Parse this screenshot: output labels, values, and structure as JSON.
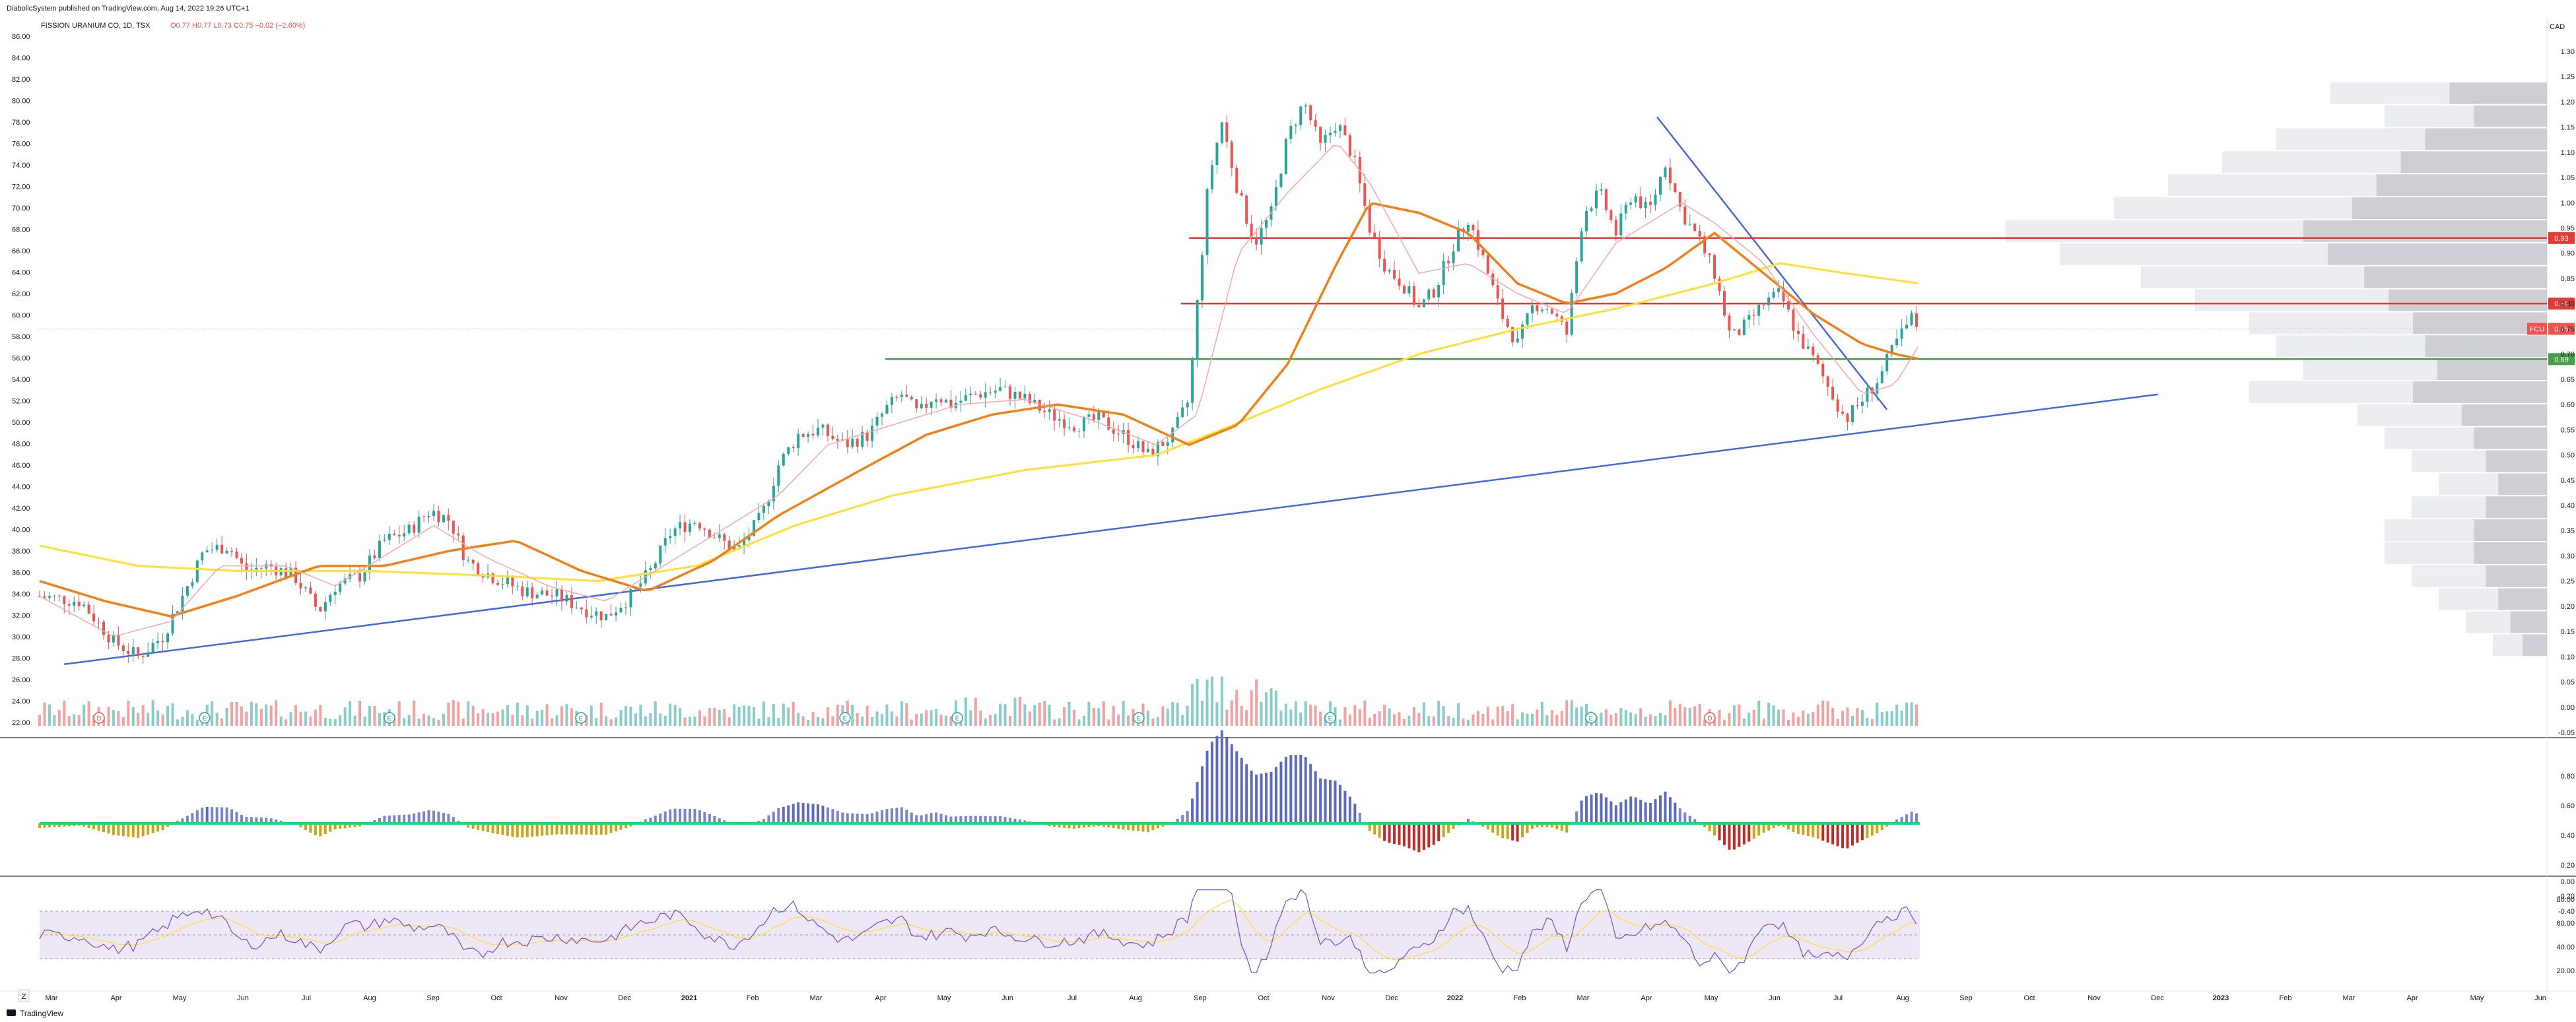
{
  "header": {
    "publisher": "DiabolicSystem published on TradingView.com, Aug 14, 2022 19:26 UTC+1",
    "symbol": "FISSION URANIUM CO, 1D, TSX",
    "ohlc": "O0.77 H0.77 L0.73 C0.75 −0.02 (−2.60%)"
  },
  "currency": "CAD",
  "footer": {
    "brand": "TradingView",
    "z_button": "Z"
  },
  "colors": {
    "up": "#26a69a",
    "down": "#ef5350",
    "ma_short": "#f7a9a8",
    "ma_mid": "#f57f17",
    "ma_long": "#ffe033",
    "trend": "#4169e1",
    "hline_red": "#e53935",
    "hline_green": "#43a047",
    "vp": "#c7c9cf",
    "rsi_band": "#ede7f6",
    "rsi_line": "#7e57c2",
    "rsi_ma": "#ffe033"
  },
  "chart_data": {
    "type": "candlestick",
    "symbol": "FISSION URANIUM CO",
    "interval": "1D",
    "exchange": "TSX",
    "x_ticks": [
      "Mar",
      "Apr",
      "May",
      "Jun",
      "Jul",
      "Aug",
      "Sep",
      "Oct",
      "Nov",
      "Dec",
      "2021",
      "Feb",
      "Mar",
      "Apr",
      "May",
      "Jun",
      "Jul",
      "Aug",
      "Sep",
      "Oct",
      "Nov",
      "Dec",
      "2022",
      "Feb",
      "Mar",
      "Apr",
      "May",
      "Jun",
      "Jul",
      "Aug",
      "Sep",
      "Oct",
      "Nov",
      "Dec",
      "2023",
      "Feb",
      "Mar",
      "Apr",
      "May",
      "Jun"
    ],
    "left_ticks": [
      "86.00",
      "84.00",
      "82.00",
      "80.00",
      "78.00",
      "76.00",
      "74.00",
      "72.00",
      "70.00",
      "68.00",
      "66.00",
      "64.00",
      "62.00",
      "60.00",
      "58.00",
      "56.00",
      "54.00",
      "52.00",
      "50.00",
      "48.00",
      "46.00",
      "44.00",
      "42.00",
      "40.00",
      "38.00",
      "36.00",
      "34.00",
      "32.00",
      "30.00",
      "28.00",
      "26.00",
      "24.00",
      "22.00"
    ],
    "price_ticks": [
      "1.30",
      "1.25",
      "1.20",
      "1.15",
      "1.10",
      "1.05",
      "1.00",
      "0.95",
      "0.90",
      "0.85",
      "0.80",
      "0.75",
      "0.70",
      "0.65",
      "0.60",
      "0.55",
      "0.50",
      "0.45",
      "0.40",
      "0.35",
      "0.30",
      "0.25",
      "0.20",
      "0.15",
      "0.10",
      "0.05",
      "0.00",
      "-0.05"
    ],
    "ylim": [
      -0.05,
      1.33
    ],
    "price_path": [
      [
        0,
        0.22
      ],
      [
        25,
        0.21
      ],
      [
        45,
        0.13
      ],
      [
        60,
        0.1
      ],
      [
        75,
        0.14
      ],
      [
        90,
        0.24
      ],
      [
        100,
        0.31
      ],
      [
        115,
        0.32
      ],
      [
        125,
        0.27
      ],
      [
        140,
        0.28
      ],
      [
        155,
        0.26
      ],
      [
        170,
        0.19
      ],
      [
        180,
        0.24
      ],
      [
        195,
        0.26
      ],
      [
        210,
        0.33
      ],
      [
        225,
        0.35
      ],
      [
        238,
        0.39
      ],
      [
        250,
        0.37
      ],
      [
        260,
        0.29
      ],
      [
        275,
        0.26
      ],
      [
        295,
        0.23
      ],
      [
        315,
        0.22
      ],
      [
        335,
        0.19
      ],
      [
        345,
        0.18
      ],
      [
        360,
        0.22
      ],
      [
        372,
        0.27
      ],
      [
        385,
        0.35
      ],
      [
        400,
        0.37
      ],
      [
        415,
        0.33
      ],
      [
        425,
        0.31
      ],
      [
        440,
        0.38
      ],
      [
        450,
        0.48
      ],
      [
        462,
        0.54
      ],
      [
        475,
        0.55
      ],
      [
        490,
        0.52
      ],
      [
        505,
        0.54
      ],
      [
        515,
        0.59
      ],
      [
        525,
        0.62
      ],
      [
        535,
        0.58
      ],
      [
        545,
        0.62
      ],
      [
        555,
        0.6
      ],
      [
        570,
        0.62
      ],
      [
        585,
        0.63
      ],
      [
        600,
        0.61
      ],
      [
        615,
        0.58
      ],
      [
        630,
        0.56
      ],
      [
        645,
        0.57
      ],
      [
        660,
        0.54
      ],
      [
        675,
        0.5
      ],
      [
        690,
        0.54
      ],
      [
        700,
        0.61
      ],
      [
        705,
        0.8
      ],
      [
        712,
        1.05
      ],
      [
        720,
        1.16
      ],
      [
        730,
        1.02
      ],
      [
        740,
        0.92
      ],
      [
        750,
        0.98
      ],
      [
        760,
        1.13
      ],
      [
        770,
        1.2
      ],
      [
        780,
        1.11
      ],
      [
        790,
        1.16
      ],
      [
        800,
        1.09
      ],
      [
        810,
        0.95
      ],
      [
        820,
        0.87
      ],
      [
        830,
        0.84
      ],
      [
        840,
        0.79
      ],
      [
        850,
        0.83
      ],
      [
        860,
        0.91
      ],
      [
        870,
        0.97
      ],
      [
        880,
        0.88
      ],
      [
        890,
        0.78
      ],
      [
        900,
        0.72
      ],
      [
        910,
        0.8
      ],
      [
        920,
        0.79
      ],
      [
        930,
        0.74
      ],
      [
        940,
        0.98
      ],
      [
        950,
        1.02
      ],
      [
        960,
        0.94
      ],
      [
        970,
        1.02
      ],
      [
        980,
        0.98
      ],
      [
        990,
        1.08
      ],
      [
        1000,
        0.98
      ],
      [
        1010,
        0.93
      ],
      [
        1020,
        0.86
      ],
      [
        1030,
        0.73
      ],
      [
        1040,
        0.76
      ],
      [
        1050,
        0.8
      ],
      [
        1060,
        0.82
      ],
      [
        1070,
        0.74
      ],
      [
        1080,
        0.69
      ],
      [
        1090,
        0.63
      ],
      [
        1100,
        0.57
      ],
      [
        1110,
        0.61
      ],
      [
        1120,
        0.65
      ],
      [
        1130,
        0.72
      ],
      [
        1140,
        0.77
      ],
      [
        1145,
        0.75
      ]
    ],
    "ma_short_path": [
      [
        0,
        0.22
      ],
      [
        45,
        0.14
      ],
      [
        80,
        0.17
      ],
      [
        110,
        0.28
      ],
      [
        150,
        0.28
      ],
      [
        180,
        0.24
      ],
      [
        210,
        0.3
      ],
      [
        240,
        0.36
      ],
      [
        270,
        0.3
      ],
      [
        310,
        0.24
      ],
      [
        345,
        0.21
      ],
      [
        380,
        0.28
      ],
      [
        420,
        0.36
      ],
      [
        450,
        0.42
      ],
      [
        480,
        0.52
      ],
      [
        520,
        0.56
      ],
      [
        560,
        0.6
      ],
      [
        600,
        0.61
      ],
      [
        640,
        0.57
      ],
      [
        680,
        0.52
      ],
      [
        705,
        0.58
      ],
      [
        730,
        0.9
      ],
      [
        760,
        1.02
      ],
      [
        790,
        1.12
      ],
      [
        810,
        1.04
      ],
      [
        840,
        0.86
      ],
      [
        870,
        0.88
      ],
      [
        900,
        0.82
      ],
      [
        930,
        0.78
      ],
      [
        960,
        0.92
      ],
      [
        1000,
        1.0
      ],
      [
        1020,
        0.96
      ],
      [
        1050,
        0.88
      ],
      [
        1080,
        0.74
      ],
      [
        1110,
        0.62
      ],
      [
        1130,
        0.64
      ],
      [
        1145,
        0.72
      ]
    ],
    "ma_mid_path": [
      [
        0,
        0.25
      ],
      [
        40,
        0.21
      ],
      [
        80,
        0.18
      ],
      [
        120,
        0.22
      ],
      [
        170,
        0.28
      ],
      [
        210,
        0.28
      ],
      [
        250,
        0.31
      ],
      [
        290,
        0.33
      ],
      [
        330,
        0.27
      ],
      [
        370,
        0.23
      ],
      [
        410,
        0.29
      ],
      [
        450,
        0.38
      ],
      [
        500,
        0.47
      ],
      [
        540,
        0.54
      ],
      [
        580,
        0.58
      ],
      [
        620,
        0.6
      ],
      [
        660,
        0.58
      ],
      [
        700,
        0.52
      ],
      [
        730,
        0.56
      ],
      [
        760,
        0.68
      ],
      [
        790,
        0.88
      ],
      [
        810,
        1.0
      ],
      [
        840,
        0.98
      ],
      [
        870,
        0.94
      ],
      [
        900,
        0.84
      ],
      [
        930,
        0.8
      ],
      [
        960,
        0.82
      ],
      [
        990,
        0.87
      ],
      [
        1020,
        0.94
      ],
      [
        1050,
        0.86
      ],
      [
        1080,
        0.78
      ],
      [
        1110,
        0.72
      ],
      [
        1130,
        0.7
      ],
      [
        1145,
        0.69
      ]
    ],
    "ma_long_path": [
      [
        0,
        0.32
      ],
      [
        60,
        0.28
      ],
      [
        120,
        0.27
      ],
      [
        200,
        0.27
      ],
      [
        280,
        0.26
      ],
      [
        340,
        0.25
      ],
      [
        400,
        0.28
      ],
      [
        460,
        0.36
      ],
      [
        520,
        0.42
      ],
      [
        600,
        0.47
      ],
      [
        680,
        0.5
      ],
      [
        720,
        0.55
      ],
      [
        780,
        0.63
      ],
      [
        840,
        0.7
      ],
      [
        900,
        0.75
      ],
      [
        960,
        0.79
      ],
      [
        1020,
        0.84
      ],
      [
        1060,
        0.88
      ],
      [
        1100,
        0.86
      ],
      [
        1145,
        0.84
      ]
    ],
    "hlines": [
      {
        "value": 0.93,
        "label": "0.93",
        "color": "red"
      },
      {
        "value": 0.8,
        "label": "0.80",
        "color": "red"
      },
      {
        "value": 0.69,
        "label": "0.69",
        "color": "green"
      }
    ],
    "last_price": {
      "symbol": "FCU",
      "value": 0.75,
      "label": "0.75"
    },
    "trendlines": [
      {
        "from": [
          15,
          0.085
        ],
        "to": [
          1290,
          0.62
        ]
      },
      {
        "from": [
          985,
          1.17
        ],
        "to": [
          1125,
          0.59
        ]
      }
    ],
    "support_line": {
      "value": 0.69,
      "from_index": 515
    },
    "volume_profile": [
      0.4,
      0.3,
      0.5,
      0.6,
      0.7,
      0.8,
      1.0,
      0.9,
      0.75,
      0.65,
      0.55,
      0.5,
      0.45,
      0.55,
      0.35,
      0.3,
      0.25,
      0.2,
      0.25,
      0.3,
      0.3,
      0.25,
      0.2,
      0.15,
      0.1
    ],
    "events": [
      "D",
      "E",
      "E",
      "E",
      "E",
      "E",
      "E",
      "E",
      "E",
      "D"
    ],
    "macd_ticks": [
      "0.80",
      "0.60",
      "0.40",
      "0.20",
      "0.00",
      "-0.20",
      "-0.40"
    ],
    "rsi_ticks": [
      "80.00",
      "60.00",
      "40.00",
      "20.00"
    ],
    "rsi_band": [
      30,
      70
    ]
  }
}
